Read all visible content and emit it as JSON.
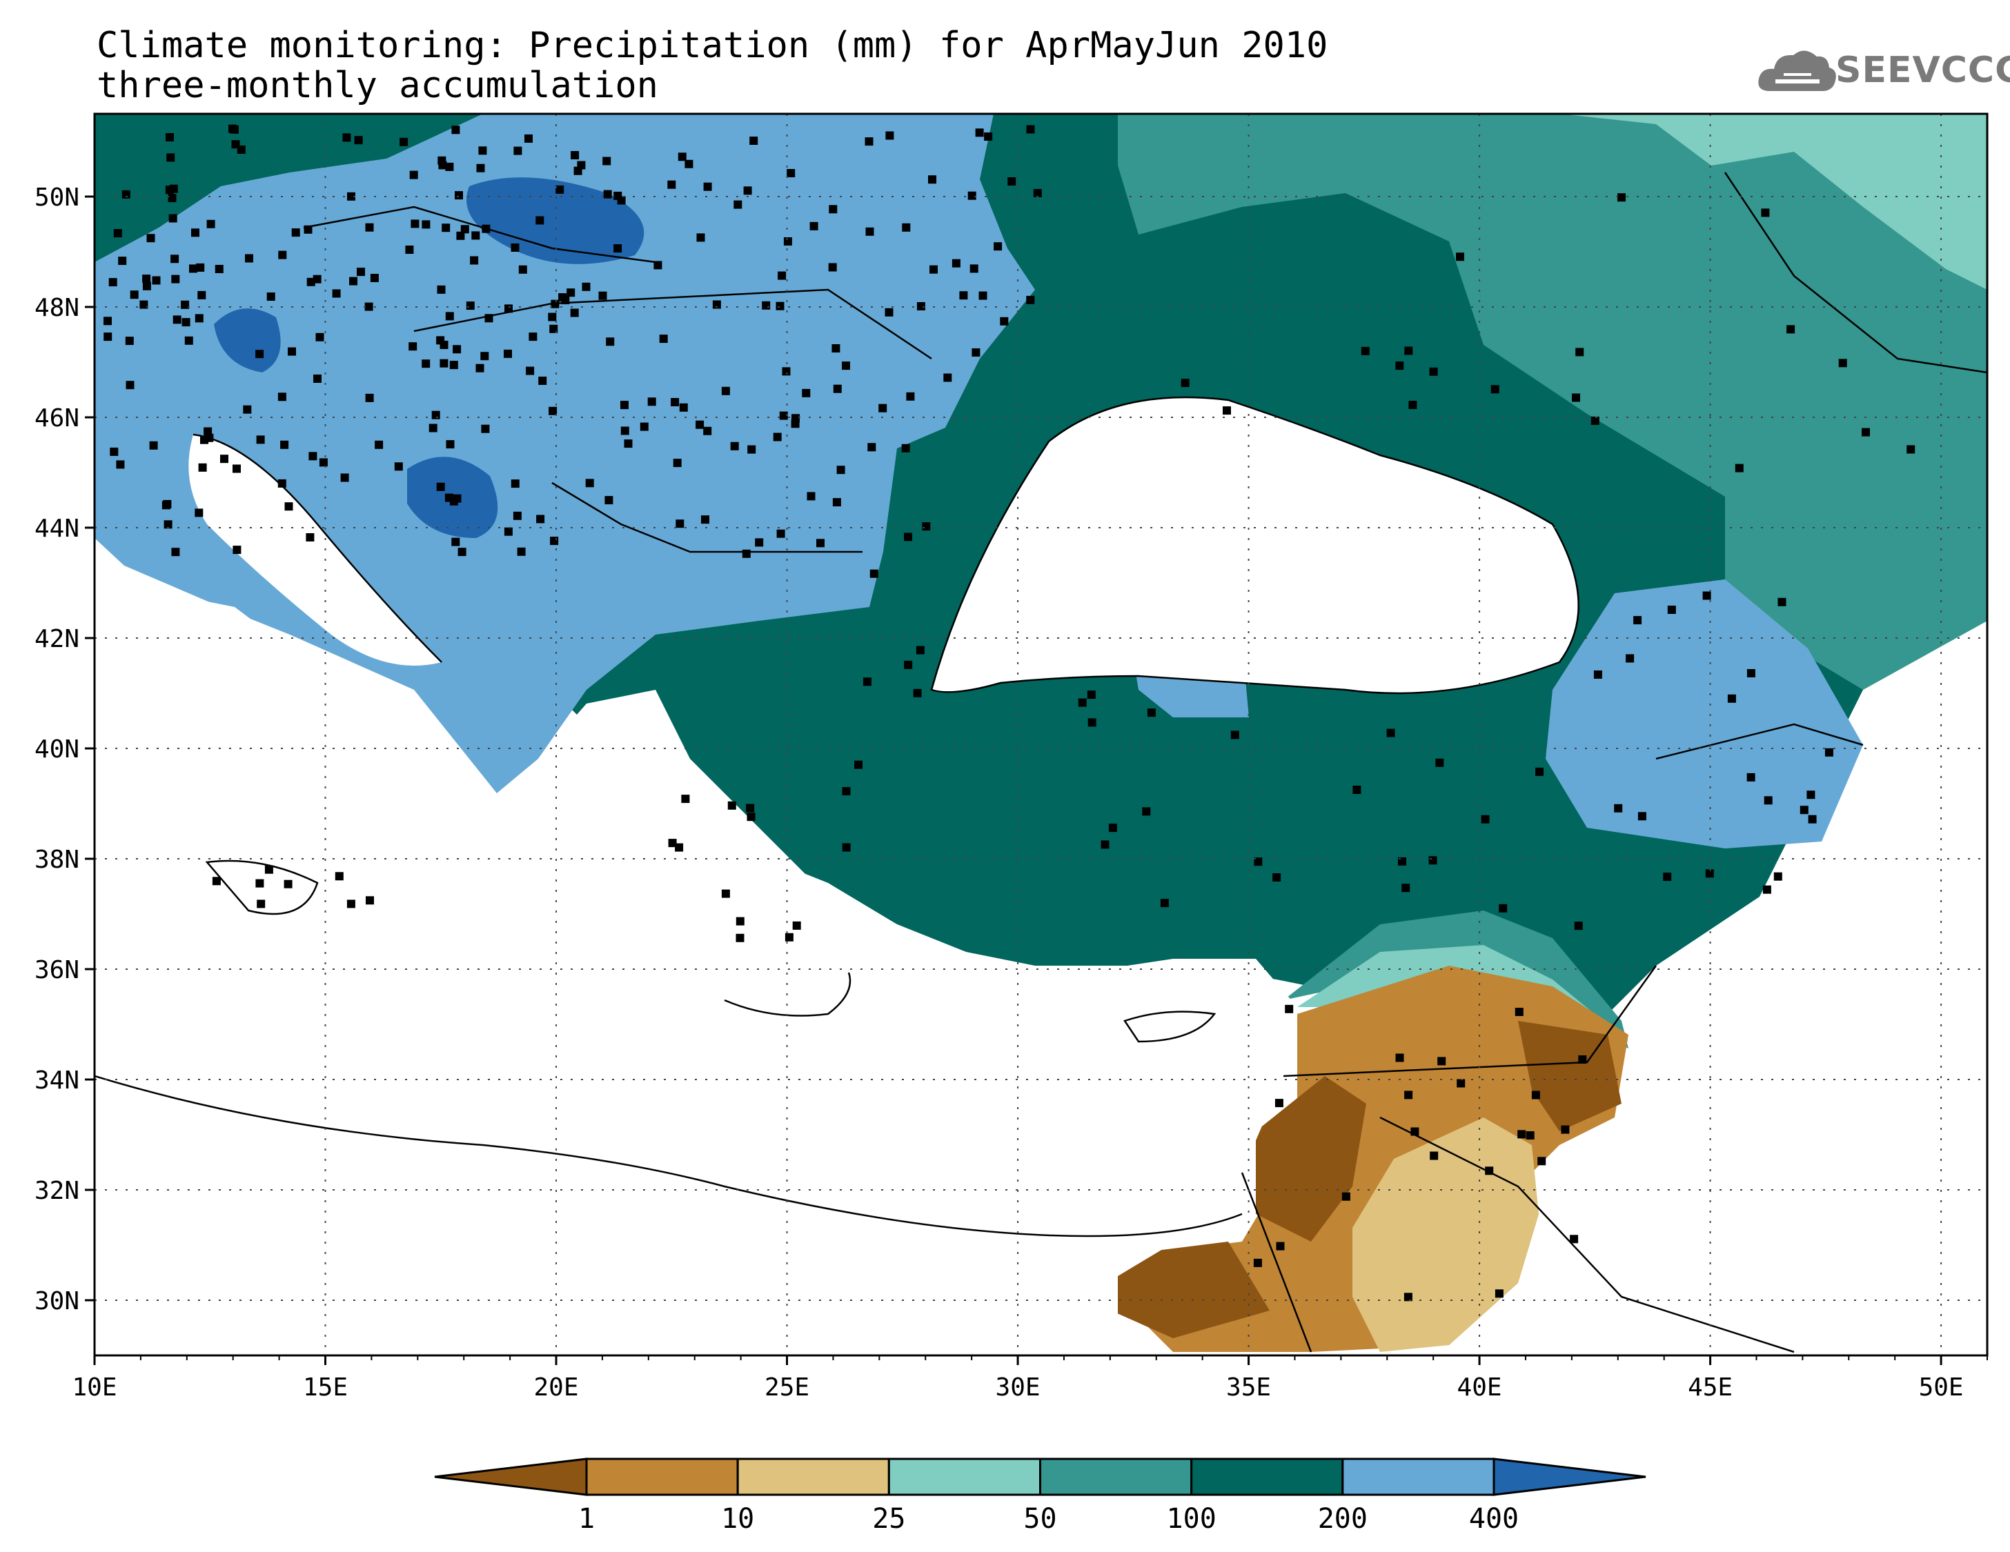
{
  "title": {
    "line1": "Climate monitoring: Precipitation (mm) for AprMayJun 2010",
    "line2": "three-monthly accumulation"
  },
  "logo": {
    "text": "SEEVCCC",
    "icon": "cloud-logo-icon"
  },
  "map": {
    "lon_range": [
      10,
      51
    ],
    "lat_range": [
      29,
      51.5
    ],
    "lon_ticks": [
      "10E",
      "15E",
      "20E",
      "25E",
      "30E",
      "35E",
      "40E",
      "45E",
      "50E"
    ],
    "lat_ticks": [
      "30N",
      "32N",
      "34N",
      "36N",
      "38N",
      "40N",
      "42N",
      "44N",
      "46N",
      "48N",
      "50N"
    ],
    "grid": "dotted"
  },
  "colorbar": {
    "labels": [
      "1",
      "10",
      "25",
      "50",
      "100",
      "200",
      "400"
    ],
    "colors": [
      "#8c5514",
      "#c08535",
      "#dfc27d",
      "#80cdc1",
      "#35978f",
      "#01665e",
      "#67a9d6",
      "#2166ac"
    ]
  }
}
